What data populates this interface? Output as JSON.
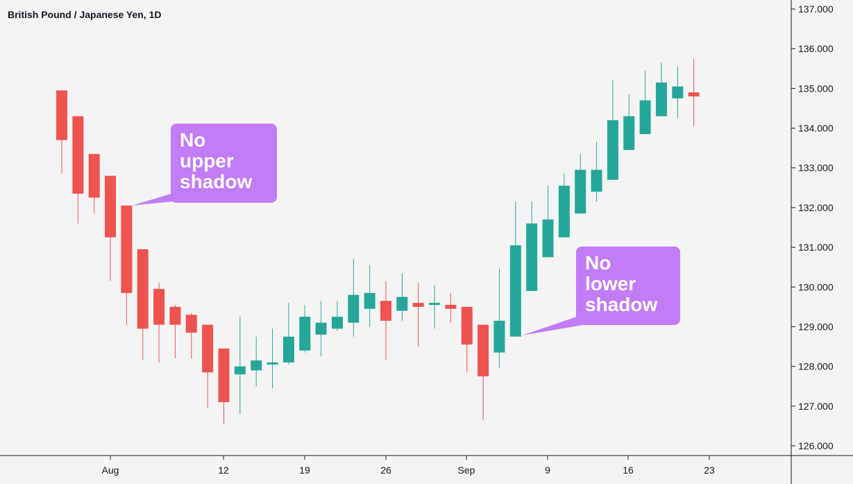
{
  "colors": {
    "background": "#f4f4f4",
    "up": "#26a69a",
    "down": "#ef5350",
    "callout": "#c27cf6",
    "axis": "#131722",
    "text": "#131722"
  },
  "chart_data": {
    "type": "candlestick",
    "title": "British Pound / Japanese Yen, 1D",
    "ylim": [
      125.75,
      137.2
    ],
    "y_ticks": [
      "126.000",
      "127.000",
      "128.000",
      "129.000",
      "130.000",
      "131.000",
      "132.000",
      "133.000",
      "134.000",
      "135.000",
      "136.000",
      "137.000"
    ],
    "x_ticks": [
      "Aug",
      "12",
      "19",
      "26",
      "Sep",
      "9",
      "16",
      "23"
    ],
    "candles": [
      {
        "open": 134.95,
        "high": 134.95,
        "low": 132.85,
        "close": 133.7
      },
      {
        "open": 134.3,
        "high": 134.3,
        "low": 131.6,
        "close": 132.35
      },
      {
        "open": 133.35,
        "high": 133.35,
        "low": 131.85,
        "close": 132.25
      },
      {
        "open": 132.8,
        "high": 132.8,
        "low": 130.15,
        "close": 131.25
      },
      {
        "open": 132.05,
        "high": 132.05,
        "low": 129.05,
        "close": 129.85
      },
      {
        "open": 130.95,
        "high": 130.95,
        "low": 128.15,
        "close": 128.95
      },
      {
        "open": 129.95,
        "high": 130.1,
        "low": 128.1,
        "close": 129.05
      },
      {
        "open": 129.5,
        "high": 129.55,
        "low": 128.2,
        "close": 129.05
      },
      {
        "open": 129.3,
        "high": 129.35,
        "low": 128.2,
        "close": 128.85
      },
      {
        "open": 129.05,
        "high": 129.05,
        "low": 126.95,
        "close": 127.85
      },
      {
        "open": 128.45,
        "high": 128.45,
        "low": 126.55,
        "close": 127.1
      },
      {
        "open": 127.8,
        "high": 129.25,
        "low": 126.8,
        "close": 128.0
      },
      {
        "open": 127.9,
        "high": 128.75,
        "low": 127.5,
        "close": 128.15
      },
      {
        "open": 128.05,
        "high": 128.95,
        "low": 127.45,
        "close": 128.1
      },
      {
        "open": 128.1,
        "high": 129.6,
        "low": 128.05,
        "close": 128.75
      },
      {
        "open": 128.4,
        "high": 129.55,
        "low": 128.35,
        "close": 129.25
      },
      {
        "open": 128.8,
        "high": 129.65,
        "low": 128.25,
        "close": 129.1
      },
      {
        "open": 128.95,
        "high": 129.65,
        "low": 128.9,
        "close": 129.25
      },
      {
        "open": 129.1,
        "high": 130.7,
        "low": 128.75,
        "close": 129.8
      },
      {
        "open": 129.45,
        "high": 130.55,
        "low": 129.0,
        "close": 129.85
      },
      {
        "open": 129.65,
        "high": 130.15,
        "low": 128.15,
        "close": 129.15
      },
      {
        "open": 129.4,
        "high": 130.35,
        "low": 129.15,
        "close": 129.75
      },
      {
        "open": 129.6,
        "high": 130.1,
        "low": 128.5,
        "close": 129.5
      },
      {
        "open": 129.55,
        "high": 130.05,
        "low": 128.95,
        "close": 129.6
      },
      {
        "open": 129.55,
        "high": 129.85,
        "low": 129.1,
        "close": 129.45
      },
      {
        "open": 129.5,
        "high": 129.5,
        "low": 127.85,
        "close": 128.55
      },
      {
        "open": 129.05,
        "high": 129.05,
        "low": 126.65,
        "close": 127.75
      },
      {
        "open": 128.35,
        "high": 130.45,
        "low": 127.95,
        "close": 129.15
      },
      {
        "open": 128.75,
        "high": 132.15,
        "low": 128.75,
        "close": 131.05
      },
      {
        "open": 129.9,
        "high": 132.15,
        "low": 129.9,
        "close": 131.6
      },
      {
        "open": 130.75,
        "high": 132.55,
        "low": 130.75,
        "close": 131.7
      },
      {
        "open": 131.25,
        "high": 132.85,
        "low": 131.25,
        "close": 132.55
      },
      {
        "open": 131.85,
        "high": 133.35,
        "low": 131.85,
        "close": 132.95
      },
      {
        "open": 132.4,
        "high": 133.65,
        "low": 132.15,
        "close": 132.95
      },
      {
        "open": 132.7,
        "high": 135.2,
        "low": 132.7,
        "close": 134.2
      },
      {
        "open": 133.45,
        "high": 134.85,
        "low": 133.45,
        "close": 134.3
      },
      {
        "open": 133.85,
        "high": 135.45,
        "low": 133.85,
        "close": 134.7
      },
      {
        "open": 134.3,
        "high": 135.65,
        "low": 134.3,
        "close": 135.15
      },
      {
        "open": 134.75,
        "high": 135.55,
        "low": 134.25,
        "close": 135.05
      },
      {
        "open": 134.9,
        "high": 135.75,
        "low": 134.05,
        "close": 134.8
      }
    ],
    "annotations": [
      {
        "lines": [
          "No",
          "upper",
          "shadow"
        ],
        "candle_index": 4,
        "points_to": "high"
      },
      {
        "lines": [
          "No",
          "lower",
          "shadow"
        ],
        "candle_index": 28,
        "points_to": "low"
      }
    ]
  }
}
